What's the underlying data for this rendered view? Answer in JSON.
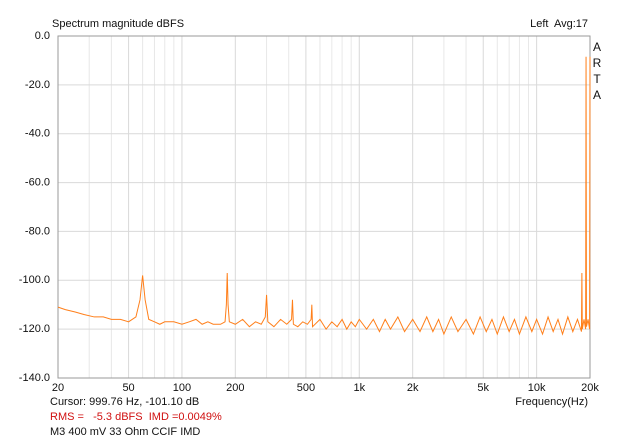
{
  "chart_data": {
    "type": "line",
    "title": "Spectrum magnitude dBFS",
    "channel_label": "Left  Avg:17",
    "brand": "ARTA",
    "x_label": "Frequency(Hz)",
    "cursor_text": "Cursor: 999.76 Hz, -101.10 dB",
    "rms_text": "RMS =   -5.3 dBFS  IMD =0.0049%",
    "note_text": "M3 400 mV 33 Ohm CCIF IMD",
    "log_x": true,
    "grid": true,
    "color": "#ff7f1a",
    "xlim": [
      20,
      20000
    ],
    "ylim": [
      -140,
      0
    ],
    "xticks": [
      20,
      50,
      100,
      200,
      500,
      {
        "value": 1000,
        "label": "1k"
      },
      {
        "value": 2000,
        "label": "2k"
      },
      {
        "value": 5000,
        "label": "5k"
      },
      {
        "value": 10000,
        "label": "10k"
      },
      {
        "value": 20000,
        "label": "20k"
      }
    ],
    "xminorticks": [
      30,
      40,
      60,
      70,
      80,
      90,
      300,
      400,
      600,
      700,
      800,
      900,
      3000,
      4000,
      6000,
      7000,
      8000,
      9000
    ],
    "yticks": [
      {
        "value": 0,
        "label": "0.0"
      },
      {
        "value": -20,
        "label": "-20.0"
      },
      {
        "value": -40,
        "label": "-40.0"
      },
      {
        "value": -60,
        "label": "-60.0"
      },
      {
        "value": -80,
        "label": "-80.0"
      },
      {
        "value": -100,
        "label": "-100.0"
      },
      {
        "value": -120,
        "label": "-120.0"
      },
      {
        "value": -140,
        "label": "-140.0"
      }
    ],
    "x": [
      20,
      22,
      25,
      28,
      32,
      36,
      40,
      45,
      50,
      55,
      58,
      60,
      62,
      65,
      70,
      75,
      80,
      90,
      100,
      110,
      120,
      130,
      140,
      150,
      165,
      175,
      178,
      180,
      182,
      185,
      200,
      220,
      240,
      260,
      280,
      295,
      300,
      305,
      330,
      360,
      390,
      415,
      420,
      425,
      450,
      480,
      510,
      535,
      540,
      545,
      600,
      650,
      700,
      750,
      800,
      850,
      900,
      950,
      1000,
      1100,
      1200,
      1300,
      1400,
      1500,
      1650,
      1800,
      2000,
      2200,
      2400,
      2600,
      2800,
      3000,
      3300,
      3600,
      4000,
      4400,
      4800,
      5200,
      5600,
      6000,
      6500,
      7000,
      7500,
      8000,
      8700,
      9400,
      10000,
      10800,
      11600,
      12400,
      13200,
      14000,
      15000,
      16000,
      17000,
      17900,
      18000,
      18100,
      18500,
      18900,
      19000,
      19100,
      19500,
      19900,
      20000
    ],
    "values": [
      -111,
      -112,
      -113,
      -114,
      -115,
      -115,
      -116,
      -116,
      -117,
      -115,
      -108,
      -98,
      -108,
      -116,
      -117,
      -118,
      -117,
      -117,
      -118,
      -117,
      -116,
      -118,
      -117,
      -118,
      -118,
      -117,
      -110,
      -97,
      -110,
      -117,
      -118,
      -116,
      -119,
      -117,
      -118,
      -115,
      -106,
      -117,
      -119,
      -116,
      -118,
      -116,
      -108,
      -118,
      -119,
      -117,
      -118,
      -116,
      -110,
      -119,
      -116,
      -120,
      -117,
      -119,
      -116,
      -120,
      -117,
      -119,
      -116,
      -120,
      -116,
      -121,
      -116,
      -120,
      -115,
      -121,
      -116,
      -121,
      -115,
      -121,
      -116,
      -122,
      -115,
      -121,
      -116,
      -122,
      -115,
      -121,
      -116,
      -122,
      -115,
      -121,
      -116,
      -122,
      -115,
      -121,
      -116,
      -122,
      -115,
      -121,
      -116,
      -122,
      -115,
      -121,
      -116,
      -121,
      -97,
      -120,
      -116,
      -120,
      -8.5,
      -119,
      -116,
      -120,
      -8.5
    ]
  }
}
